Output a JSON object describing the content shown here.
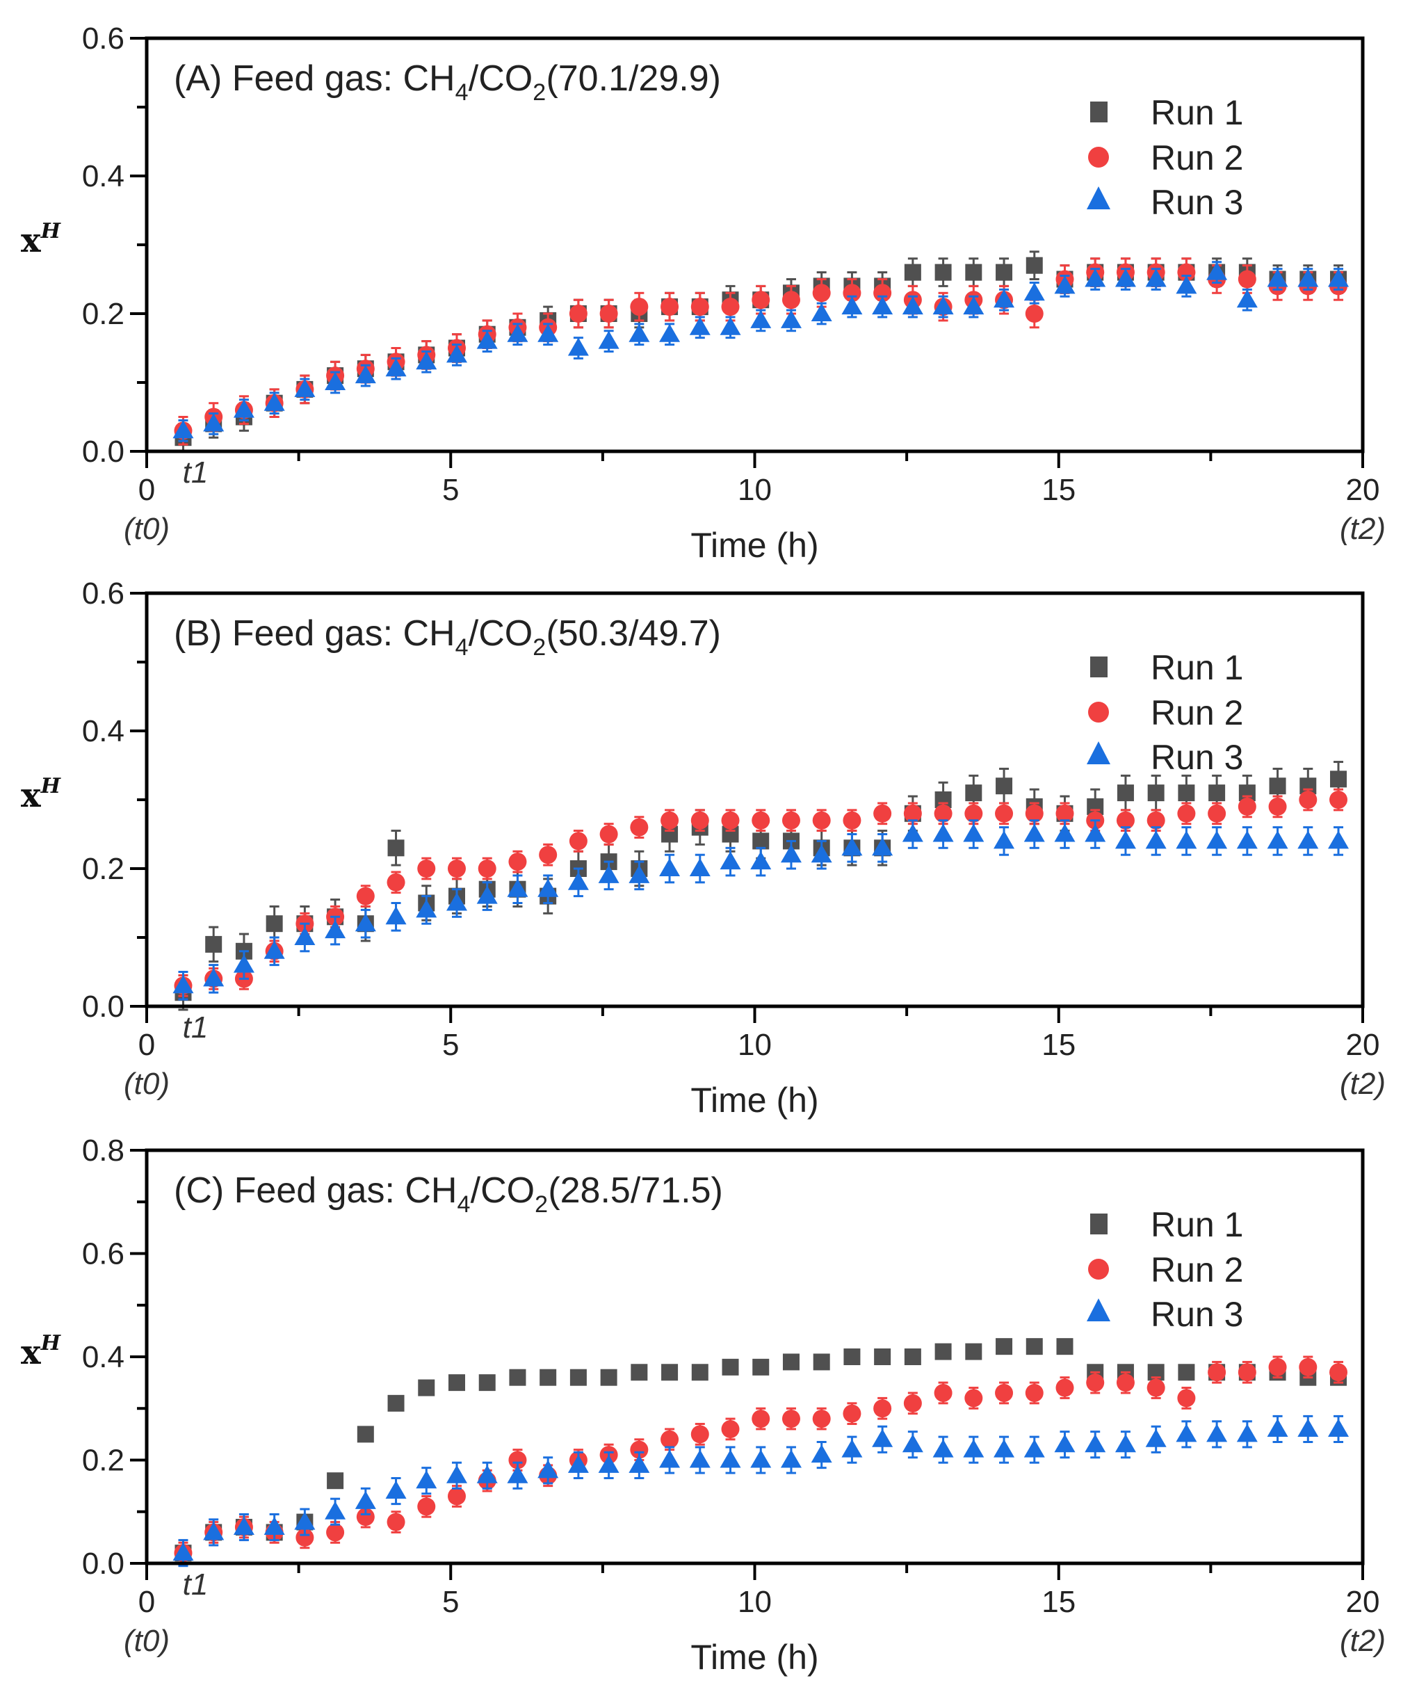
{
  "colors": {
    "run1": "#505050",
    "run2": "#f04040",
    "run3": "#1a6fdf",
    "axis": "#000000"
  },
  "legend": [
    "Run 1",
    "Run 2",
    "Run 3"
  ],
  "chart_data": [
    {
      "type": "scatter",
      "title": "(A)  Feed gas: CH4/CO2 (70.1/29.9)",
      "title_parts": {
        "prefix": "(A)  Feed gas: CH",
        "sub1": "4",
        "mid": "/CO",
        "sub2": "2",
        "suffix": " (70.1/29.9)"
      },
      "xlabel": "Time (h)",
      "ylabel": "x",
      "ylabel_sup": "H",
      "xlim": [
        0,
        20
      ],
      "ylim": [
        0,
        0.6
      ],
      "xticks": [
        "0",
        "5",
        "10",
        "15",
        "20"
      ],
      "yticks": [
        "0.0",
        "0.2",
        "0.4",
        "0.6"
      ],
      "annotations": {
        "t0": "(t0)",
        "t1": "t1",
        "t2": "(t2)"
      },
      "legend_position": "top-right",
      "x": [
        0.6,
        1.1,
        1.6,
        2.1,
        2.6,
        3.1,
        3.6,
        4.1,
        4.6,
        5.1,
        5.6,
        6.1,
        6.6,
        7.1,
        7.6,
        8.1,
        8.6,
        9.1,
        9.6,
        10.1,
        10.6,
        11.1,
        11.6,
        12.1,
        12.6,
        13.1,
        13.6,
        14.1,
        14.6,
        15.1,
        15.6,
        16.1,
        16.6,
        17.1,
        17.6,
        18.1,
        18.6,
        19.1,
        19.6
      ],
      "series": [
        {
          "name": "Run 1",
          "marker": "square",
          "error": 0.02,
          "values": [
            0.02,
            0.04,
            0.05,
            0.07,
            0.09,
            0.11,
            0.12,
            0.13,
            0.14,
            0.15,
            0.17,
            0.18,
            0.19,
            0.2,
            0.2,
            0.2,
            0.21,
            0.21,
            0.22,
            0.22,
            0.23,
            0.24,
            0.24,
            0.24,
            0.26,
            0.26,
            0.26,
            0.26,
            0.27,
            0.25,
            0.26,
            0.26,
            0.26,
            0.26,
            0.26,
            0.26,
            0.25,
            0.25,
            0.25
          ]
        },
        {
          "name": "Run 2",
          "marker": "circle",
          "error": 0.02,
          "values": [
            0.03,
            0.05,
            0.06,
            0.07,
            0.09,
            0.11,
            0.12,
            0.13,
            0.14,
            0.15,
            0.17,
            0.18,
            0.18,
            0.2,
            0.2,
            0.21,
            0.21,
            0.21,
            0.21,
            0.22,
            0.22,
            0.23,
            0.23,
            0.23,
            0.22,
            0.21,
            0.22,
            0.22,
            0.2,
            0.25,
            0.26,
            0.26,
            0.26,
            0.26,
            0.25,
            0.25,
            0.24,
            0.24,
            0.24
          ]
        },
        {
          "name": "Run 3",
          "marker": "triangle",
          "error": 0.015,
          "values": [
            0.03,
            0.04,
            0.06,
            0.07,
            0.09,
            0.1,
            0.11,
            0.12,
            0.13,
            0.14,
            0.16,
            0.17,
            0.17,
            0.15,
            0.16,
            0.17,
            0.17,
            0.18,
            0.18,
            0.19,
            0.19,
            0.2,
            0.21,
            0.21,
            0.21,
            0.21,
            0.21,
            0.22,
            0.23,
            0.24,
            0.25,
            0.25,
            0.25,
            0.24,
            0.26,
            0.22,
            0.25,
            0.25,
            0.25
          ]
        }
      ]
    },
    {
      "type": "scatter",
      "title": "(B)  Feed gas: CH4/CO2 (50.3/49.7)",
      "title_parts": {
        "prefix": "(B)  Feed gas: CH",
        "sub1": "4",
        "mid": "/CO",
        "sub2": "2",
        "suffix": " (50.3/49.7)"
      },
      "xlabel": "Time (h)",
      "ylabel": "x",
      "ylabel_sup": "H",
      "xlim": [
        0,
        20
      ],
      "ylim": [
        0,
        0.6
      ],
      "xticks": [
        "0",
        "5",
        "10",
        "15",
        "20"
      ],
      "yticks": [
        "0.0",
        "0.2",
        "0.4",
        "0.6"
      ],
      "annotations": {
        "t0": "(t0)",
        "t1": "t1",
        "t2": "(t2)"
      },
      "legend_position": "top-right",
      "x": [
        0.6,
        1.1,
        1.6,
        2.1,
        2.6,
        3.1,
        3.6,
        4.1,
        4.6,
        5.1,
        5.6,
        6.1,
        6.6,
        7.1,
        7.6,
        8.1,
        8.6,
        9.1,
        9.6,
        10.1,
        10.6,
        11.1,
        11.6,
        12.1,
        12.6,
        13.1,
        13.6,
        14.1,
        14.6,
        15.1,
        15.6,
        16.1,
        16.6,
        17.1,
        17.6,
        18.1,
        18.6,
        19.1,
        19.6
      ],
      "series": [
        {
          "name": "Run 1",
          "marker": "square",
          "error": 0.025,
          "values": [
            0.02,
            0.09,
            0.08,
            0.12,
            0.12,
            0.13,
            0.12,
            0.23,
            0.15,
            0.16,
            0.17,
            0.17,
            0.16,
            0.2,
            0.21,
            0.2,
            0.25,
            0.26,
            0.25,
            0.24,
            0.24,
            0.23,
            0.23,
            0.23,
            0.28,
            0.3,
            0.31,
            0.32,
            0.29,
            0.28,
            0.29,
            0.31,
            0.31,
            0.31,
            0.31,
            0.31,
            0.32,
            0.32,
            0.33
          ]
        },
        {
          "name": "Run 2",
          "marker": "circle",
          "error": 0.015,
          "values": [
            0.03,
            0.04,
            0.04,
            0.08,
            0.12,
            0.13,
            0.16,
            0.18,
            0.2,
            0.2,
            0.2,
            0.21,
            0.22,
            0.24,
            0.25,
            0.26,
            0.27,
            0.27,
            0.27,
            0.27,
            0.27,
            0.27,
            0.27,
            0.28,
            0.28,
            0.28,
            0.28,
            0.28,
            0.28,
            0.28,
            0.27,
            0.27,
            0.27,
            0.28,
            0.28,
            0.29,
            0.29,
            0.3,
            0.3
          ]
        },
        {
          "name": "Run 3",
          "marker": "triangle",
          "error": 0.02,
          "values": [
            0.03,
            0.04,
            0.06,
            0.08,
            0.1,
            0.11,
            0.12,
            0.13,
            0.14,
            0.15,
            0.16,
            0.17,
            0.17,
            0.18,
            0.19,
            0.19,
            0.2,
            0.2,
            0.21,
            0.21,
            0.22,
            0.22,
            0.23,
            0.23,
            0.25,
            0.25,
            0.25,
            0.24,
            0.25,
            0.25,
            0.25,
            0.24,
            0.24,
            0.24,
            0.24,
            0.24,
            0.24,
            0.24,
            0.24
          ]
        }
      ]
    },
    {
      "type": "scatter",
      "title": "(C)  Feed gas: CH4/CO2 (28.5/71.5)",
      "title_parts": {
        "prefix": "(C)  Feed gas: CH",
        "sub1": "4",
        "mid": "/CO",
        "sub2": "2",
        "suffix": " (28.5/71.5)"
      },
      "xlabel": "Time (h)",
      "ylabel": "x",
      "ylabel_sup": "H",
      "xlim": [
        0,
        20
      ],
      "ylim": [
        0,
        0.8
      ],
      "xticks": [
        "0",
        "5",
        "10",
        "15",
        "20"
      ],
      "yticks": [
        "0.0",
        "0.2",
        "0.4",
        "0.6",
        "0.8"
      ],
      "annotations": {
        "t0": "(t0)",
        "t1": "t1",
        "t2": "(t2)"
      },
      "legend_position": "top-right",
      "x": [
        0.6,
        1.1,
        1.6,
        2.1,
        2.6,
        3.1,
        3.6,
        4.1,
        4.6,
        5.1,
        5.6,
        6.1,
        6.6,
        7.1,
        7.6,
        8.1,
        8.6,
        9.1,
        9.6,
        10.1,
        10.6,
        11.1,
        11.6,
        12.1,
        12.6,
        13.1,
        13.6,
        14.1,
        14.6,
        15.1,
        15.6,
        16.1,
        16.6,
        17.1,
        17.6,
        18.1,
        18.6,
        19.1,
        19.6
      ],
      "series": [
        {
          "name": "Run 1",
          "marker": "square",
          "error": 0.01,
          "values": [
            0.02,
            0.06,
            0.07,
            0.06,
            0.08,
            0.16,
            0.25,
            0.31,
            0.34,
            0.35,
            0.35,
            0.36,
            0.36,
            0.36,
            0.36,
            0.37,
            0.37,
            0.37,
            0.38,
            0.38,
            0.39,
            0.39,
            0.4,
            0.4,
            0.4,
            0.41,
            0.41,
            0.42,
            0.42,
            0.42,
            0.37,
            0.37,
            0.37,
            0.37,
            0.37,
            0.37,
            0.37,
            0.36,
            0.36
          ]
        },
        {
          "name": "Run 2",
          "marker": "circle",
          "error": 0.02,
          "values": [
            0.02,
            0.06,
            0.07,
            0.06,
            0.05,
            0.06,
            0.09,
            0.08,
            0.11,
            0.13,
            0.16,
            0.2,
            0.17,
            0.2,
            0.21,
            0.22,
            0.24,
            0.25,
            0.26,
            0.28,
            0.28,
            0.28,
            0.29,
            0.3,
            0.31,
            0.33,
            0.32,
            0.33,
            0.33,
            0.34,
            0.35,
            0.35,
            0.34,
            0.32,
            0.37,
            0.37,
            0.38,
            0.38,
            0.37
          ]
        },
        {
          "name": "Run 3",
          "marker": "triangle",
          "error": 0.025,
          "values": [
            0.02,
            0.06,
            0.07,
            0.07,
            0.08,
            0.1,
            0.12,
            0.14,
            0.16,
            0.17,
            0.17,
            0.17,
            0.18,
            0.19,
            0.19,
            0.19,
            0.2,
            0.2,
            0.2,
            0.2,
            0.2,
            0.21,
            0.22,
            0.24,
            0.23,
            0.22,
            0.22,
            0.22,
            0.22,
            0.23,
            0.23,
            0.23,
            0.24,
            0.25,
            0.25,
            0.25,
            0.26,
            0.26,
            0.26
          ]
        }
      ]
    }
  ]
}
